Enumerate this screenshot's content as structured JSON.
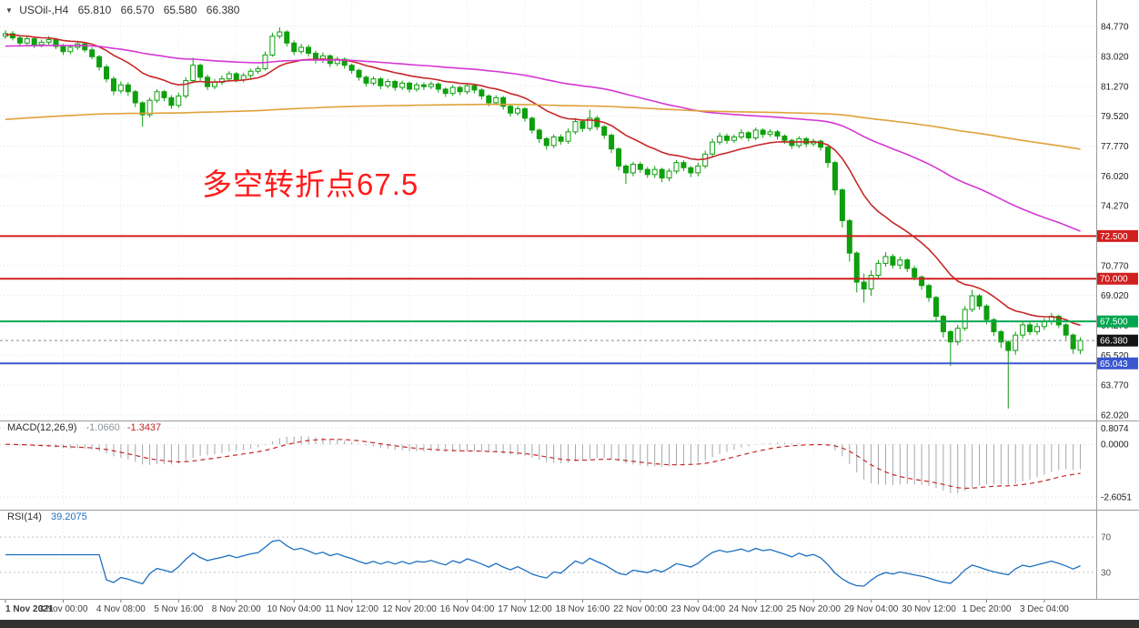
{
  "header": {
    "symbol_period": "USOil-,H4",
    "open": "65.810",
    "high": "66.570",
    "low": "65.580",
    "close": "66.380"
  },
  "annotation": {
    "text": "多空转折点67.5",
    "color": "#ff1b1b"
  },
  "indicators_labels": {
    "macd_name": "MACD(12,26,9)",
    "macd_value": "-1.0660",
    "macd_signal": "-1.3437",
    "rsi_name": "RSI(14)",
    "rsi_value": "39.2075"
  },
  "chart_data": {
    "type": "candlestick",
    "symbol": "USOil-",
    "timeframe": "H4",
    "title": "USOil-,H4 65.810 66.570 65.580 66.380",
    "price_axis": {
      "max": 86.32,
      "min": 61.7,
      "tick_step": 1.75,
      "labels": [
        "84.770",
        "83.020",
        "81.270",
        "79.520",
        "77.770",
        "76.020",
        "74.270",
        "72.520",
        "70.770",
        "69.020",
        "67.270",
        "65.520",
        "63.770",
        "62.020"
      ]
    },
    "x_labels": [
      "1 Nov 2021",
      "3 Nov 00:00",
      "4 Nov 08:00",
      "5 Nov 16:00",
      "8 Nov 20:00",
      "10 Nov 04:00",
      "11 Nov 12:00",
      "12 Nov 20:00",
      "16 Nov 04:00",
      "17 Nov 12:00",
      "18 Nov 16:00",
      "22 Nov 00:00",
      "23 Nov 04:00",
      "24 Nov 12:00",
      "25 Nov 20:00",
      "29 Nov 04:00",
      "30 Nov 12:00",
      "1 Dec 20:00",
      "3 Dec 04:00"
    ],
    "candle_colors": {
      "up_fill": "#ffffff",
      "down_fill": "#0d9f0d",
      "stroke": "#0d9f0d"
    },
    "candles": [
      [
        84.2,
        84.55,
        84.05,
        84.35
      ],
      [
        84.35,
        84.5,
        83.95,
        84.1
      ],
      [
        84.1,
        84.25,
        83.6,
        83.8
      ],
      [
        83.8,
        84.2,
        83.65,
        84.05
      ],
      [
        84.05,
        84.15,
        83.5,
        83.7
      ],
      [
        83.7,
        84.0,
        83.55,
        83.85
      ],
      [
        83.85,
        84.2,
        83.7,
        84.0
      ],
      [
        84.0,
        84.1,
        83.45,
        83.6
      ],
      [
        83.6,
        83.75,
        83.1,
        83.3
      ],
      [
        83.3,
        83.7,
        83.15,
        83.55
      ],
      [
        83.55,
        83.9,
        83.4,
        83.75
      ],
      [
        83.75,
        83.85,
        83.25,
        83.4
      ],
      [
        83.4,
        83.55,
        82.85,
        83.0
      ],
      [
        83.0,
        83.1,
        82.2,
        82.4
      ],
      [
        82.4,
        82.55,
        81.5,
        81.7
      ],
      [
        81.7,
        81.85,
        80.75,
        81.0
      ],
      [
        81.0,
        81.55,
        80.85,
        81.35
      ],
      [
        81.35,
        81.5,
        80.7,
        80.95
      ],
      [
        80.95,
        81.05,
        80.05,
        80.3
      ],
      [
        80.3,
        80.4,
        78.9,
        79.6
      ],
      [
        79.6,
        80.6,
        79.45,
        80.45
      ],
      [
        80.45,
        81.1,
        80.3,
        80.95
      ],
      [
        80.95,
        81.05,
        80.4,
        80.6
      ],
      [
        80.6,
        80.75,
        79.95,
        80.15
      ],
      [
        80.15,
        80.9,
        80.0,
        80.7
      ],
      [
        80.7,
        81.8,
        80.55,
        81.6
      ],
      [
        81.6,
        82.95,
        81.45,
        82.5
      ],
      [
        82.5,
        82.6,
        81.6,
        81.8
      ],
      [
        81.8,
        81.95,
        81.05,
        81.25
      ],
      [
        81.25,
        81.7,
        81.1,
        81.5
      ],
      [
        81.5,
        81.9,
        81.35,
        81.7
      ],
      [
        81.7,
        82.15,
        81.55,
        82.0
      ],
      [
        82.0,
        82.1,
        81.5,
        81.65
      ],
      [
        81.65,
        82.05,
        81.5,
        81.9
      ],
      [
        81.9,
        82.3,
        81.75,
        82.15
      ],
      [
        82.15,
        82.45,
        82.0,
        82.3
      ],
      [
        82.3,
        83.3,
        82.2,
        83.1
      ],
      [
        83.1,
        84.4,
        83.0,
        84.2
      ],
      [
        84.2,
        84.72,
        84.05,
        84.45
      ],
      [
        84.45,
        84.55,
        83.6,
        83.8
      ],
      [
        83.8,
        83.95,
        83.1,
        83.3
      ],
      [
        83.3,
        83.75,
        83.15,
        83.55
      ],
      [
        83.55,
        83.7,
        83.0,
        83.2
      ],
      [
        83.2,
        83.35,
        82.6,
        82.8
      ],
      [
        82.8,
        83.25,
        82.65,
        83.05
      ],
      [
        83.05,
        83.15,
        82.4,
        82.6
      ],
      [
        82.6,
        83.0,
        82.45,
        82.85
      ],
      [
        82.85,
        82.95,
        82.3,
        82.5
      ],
      [
        82.5,
        82.6,
        82.0,
        82.2
      ],
      [
        82.2,
        82.3,
        81.6,
        81.8
      ],
      [
        81.8,
        81.9,
        81.25,
        81.45
      ],
      [
        81.45,
        81.85,
        81.3,
        81.7
      ],
      [
        81.7,
        81.8,
        81.1,
        81.3
      ],
      [
        81.3,
        81.7,
        81.15,
        81.55
      ],
      [
        81.55,
        81.65,
        81.0,
        81.2
      ],
      [
        81.2,
        81.6,
        81.05,
        81.45
      ],
      [
        81.45,
        81.55,
        80.9,
        81.1
      ],
      [
        81.1,
        81.5,
        80.95,
        81.35
      ],
      [
        81.35,
        81.5,
        81.05,
        81.25
      ],
      [
        81.25,
        81.55,
        81.1,
        81.4
      ],
      [
        81.4,
        81.5,
        80.9,
        81.1
      ],
      [
        81.1,
        81.2,
        80.65,
        80.85
      ],
      [
        80.85,
        81.35,
        80.7,
        81.2
      ],
      [
        81.2,
        81.3,
        80.75,
        80.95
      ],
      [
        80.95,
        81.45,
        80.8,
        81.3
      ],
      [
        81.3,
        81.4,
        80.85,
        81.05
      ],
      [
        81.05,
        81.15,
        80.5,
        80.7
      ],
      [
        80.7,
        80.8,
        80.1,
        80.3
      ],
      [
        80.3,
        80.75,
        80.15,
        80.6
      ],
      [
        80.6,
        80.7,
        79.9,
        80.1
      ],
      [
        80.1,
        80.2,
        79.5,
        79.7
      ],
      [
        79.7,
        80.1,
        79.55,
        79.95
      ],
      [
        79.95,
        80.05,
        79.2,
        79.4
      ],
      [
        79.4,
        79.5,
        78.5,
        78.7
      ],
      [
        78.7,
        78.8,
        77.95,
        78.2
      ],
      [
        78.2,
        78.3,
        77.55,
        77.8
      ],
      [
        77.8,
        78.45,
        77.65,
        78.3
      ],
      [
        78.3,
        78.45,
        77.85,
        78.05
      ],
      [
        78.05,
        78.8,
        77.9,
        78.6
      ],
      [
        78.6,
        79.4,
        78.45,
        79.2
      ],
      [
        79.2,
        79.35,
        78.6,
        78.8
      ],
      [
        78.8,
        79.9,
        78.65,
        79.4
      ],
      [
        79.4,
        79.55,
        78.7,
        78.9
      ],
      [
        78.9,
        79.0,
        78.2,
        78.4
      ],
      [
        78.4,
        78.5,
        77.35,
        77.6
      ],
      [
        77.6,
        77.7,
        76.35,
        76.6
      ],
      [
        76.6,
        76.7,
        75.55,
        76.2
      ],
      [
        76.2,
        76.85,
        76.0,
        76.7
      ],
      [
        76.7,
        76.85,
        76.2,
        76.4
      ],
      [
        76.4,
        76.55,
        75.9,
        76.1
      ],
      [
        76.1,
        76.6,
        75.9,
        76.4
      ],
      [
        76.4,
        76.5,
        75.65,
        75.9
      ],
      [
        75.9,
        76.45,
        75.7,
        76.3
      ],
      [
        76.3,
        76.95,
        76.15,
        76.8
      ],
      [
        76.8,
        76.95,
        76.3,
        76.5
      ],
      [
        76.5,
        76.6,
        75.95,
        76.2
      ],
      [
        76.2,
        76.8,
        76.0,
        76.6
      ],
      [
        76.6,
        77.5,
        76.45,
        77.3
      ],
      [
        77.3,
        78.2,
        77.15,
        78.0
      ],
      [
        78.0,
        78.55,
        77.85,
        78.35
      ],
      [
        78.35,
        78.5,
        77.9,
        78.1
      ],
      [
        78.1,
        78.45,
        77.95,
        78.3
      ],
      [
        78.3,
        78.75,
        78.15,
        78.55
      ],
      [
        78.55,
        78.65,
        78.05,
        78.25
      ],
      [
        78.25,
        78.85,
        78.1,
        78.7
      ],
      [
        78.7,
        78.8,
        78.25,
        78.45
      ],
      [
        78.45,
        78.75,
        78.3,
        78.6
      ],
      [
        78.6,
        78.7,
        78.15,
        78.35
      ],
      [
        78.35,
        78.45,
        77.9,
        78.1
      ],
      [
        78.1,
        78.2,
        77.6,
        77.8
      ],
      [
        77.8,
        78.35,
        77.65,
        78.2
      ],
      [
        78.2,
        78.3,
        77.7,
        77.9
      ],
      [
        77.9,
        78.2,
        77.75,
        78.05
      ],
      [
        78.05,
        78.15,
        77.5,
        77.7
      ],
      [
        77.7,
        77.8,
        76.5,
        76.8
      ],
      [
        76.8,
        76.9,
        74.9,
        75.2
      ],
      [
        75.2,
        75.3,
        73.0,
        73.4
      ],
      [
        73.4,
        73.5,
        71.0,
        71.5
      ],
      [
        71.5,
        71.6,
        69.2,
        69.8
      ],
      [
        69.8,
        70.3,
        68.6,
        69.4
      ],
      [
        69.4,
        70.5,
        69.0,
        70.2
      ],
      [
        70.2,
        71.1,
        70.0,
        70.9
      ],
      [
        70.9,
        71.55,
        70.7,
        71.3
      ],
      [
        71.3,
        71.45,
        70.6,
        70.8
      ],
      [
        70.8,
        71.3,
        70.55,
        71.1
      ],
      [
        71.1,
        71.2,
        70.4,
        70.6
      ],
      [
        70.6,
        70.75,
        69.9,
        70.1
      ],
      [
        70.1,
        70.2,
        69.35,
        69.6
      ],
      [
        69.6,
        69.7,
        68.65,
        68.9
      ],
      [
        68.9,
        69.0,
        67.5,
        67.8
      ],
      [
        67.8,
        67.9,
        66.55,
        66.9
      ],
      [
        66.9,
        67.0,
        64.9,
        66.3
      ],
      [
        66.3,
        67.3,
        66.1,
        67.1
      ],
      [
        67.1,
        68.4,
        66.95,
        68.2
      ],
      [
        68.2,
        69.35,
        68.05,
        69.0
      ],
      [
        69.0,
        69.1,
        68.2,
        68.4
      ],
      [
        68.4,
        68.5,
        67.35,
        67.6
      ],
      [
        67.6,
        67.7,
        66.65,
        66.9
      ],
      [
        66.9,
        67.0,
        65.95,
        66.3
      ],
      [
        66.3,
        66.4,
        62.4,
        65.8
      ],
      [
        65.8,
        66.9,
        65.55,
        66.7
      ],
      [
        66.7,
        67.5,
        66.5,
        67.3
      ],
      [
        67.3,
        67.45,
        66.7,
        66.9
      ],
      [
        66.9,
        67.4,
        66.7,
        67.2
      ],
      [
        67.2,
        67.7,
        67.0,
        67.5
      ],
      [
        67.5,
        68.0,
        67.3,
        67.8
      ],
      [
        67.8,
        67.9,
        67.1,
        67.3
      ],
      [
        67.3,
        67.4,
        66.45,
        66.7
      ],
      [
        66.7,
        66.8,
        65.6,
        65.9
      ],
      [
        65.81,
        66.57,
        65.58,
        66.38
      ]
    ],
    "overlays": [
      {
        "name": "ma-fast",
        "period": 16,
        "seed": 84.3,
        "color": "#c62828"
      },
      {
        "name": "ma-medium",
        "period": 80,
        "seed": 83.6,
        "color": "#d438d4"
      },
      {
        "name": "ma-slow",
        "period": 340,
        "seed": 79.3,
        "color": "#dfa23a"
      }
    ],
    "hlines": [
      {
        "value": 72.5,
        "label": "72.500",
        "color": "#d02020",
        "width": 2
      },
      {
        "value": 70.0,
        "label": "70.000",
        "color": "#d02020",
        "width": 2
      },
      {
        "value": 67.5,
        "label": "67.500",
        "color": "#00a650",
        "width": 2
      },
      {
        "value": 65.043,
        "label": "65.043",
        "color": "#3a57d0",
        "width": 2
      }
    ],
    "current_price": {
      "value": 66.38,
      "label": "66.380",
      "badge_color": "#141414"
    },
    "macd": {
      "name": "MACD",
      "params": [
        12,
        26,
        9
      ],
      "value": -1.066,
      "signal_value": -1.3437,
      "axis_labels": [
        "0.8074",
        "0.0000",
        "-2.6051"
      ],
      "plot_range": [
        -3.05,
        1.0
      ],
      "hist_color": "#a3a7ab",
      "signal_color": "#c62828"
    },
    "rsi": {
      "name": "RSI",
      "period": 14,
      "value": 39.2075,
      "levels": [
        70,
        30
      ],
      "axis_labels": [
        "70",
        "30"
      ],
      "range": [
        0,
        100
      ],
      "line_color": "#1d6fc0",
      "level_color": "#c0c0c0"
    },
    "grid": {
      "h_color": "#e4e4e4",
      "v_color": "#ececec",
      "separator_color": "#9b9b9b"
    }
  }
}
